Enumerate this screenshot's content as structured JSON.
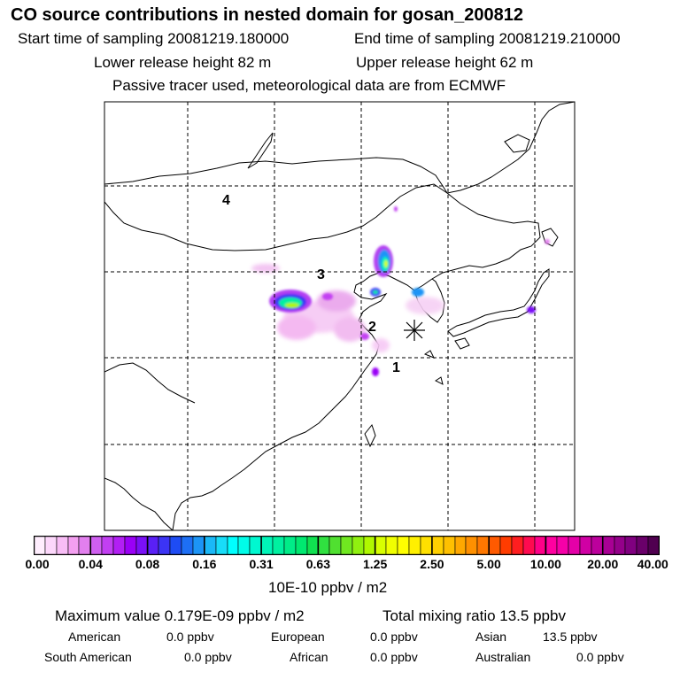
{
  "header": {
    "title": "CO  source contributions in nested domain for gosan_200812",
    "start_time": "Start time of sampling 20081219.180000",
    "end_time": "End time of sampling 20081219.210000",
    "lower_height": "Lower release height   82 m",
    "upper_height": "Upper release height   62 m",
    "tracer_note": "Passive tracer used, meteorological data are from ECMWF"
  },
  "map": {
    "region_labels": [
      "1",
      "2",
      "3",
      "4"
    ],
    "receptor_marker": "Gosan station (asterisk)"
  },
  "colorbar": {
    "tick_labels": [
      "0.00",
      "0.04",
      "0.08",
      "0.16",
      "0.31",
      "0.63",
      "1.25",
      "2.50",
      "5.00",
      "10.00",
      "20.00",
      "40.00"
    ],
    "unit": "10E-10 ppbv / m2",
    "colors": [
      "#ffeefe",
      "#fcd7fb",
      "#f8bdf6",
      "#f39ff0",
      "#e27fee",
      "#cf5ff0",
      "#c23ff2",
      "#b21ff4",
      "#9a00f6",
      "#7a10f6",
      "#5a20f6",
      "#3c34f5",
      "#1e4cf4",
      "#1d6ff5",
      "#1c94f6",
      "#1ab8f7",
      "#18dcf8",
      "#00ffff",
      "#00fce8",
      "#00f8d0",
      "#00f4b8",
      "#00f0a0",
      "#00ec88",
      "#00e870",
      "#10e050",
      "#30e040",
      "#50e030",
      "#70e820",
      "#90f010",
      "#b0f800",
      "#d8ff00",
      "#f0ff00",
      "#ffff00",
      "#fff000",
      "#ffe000",
      "#ffd000",
      "#ffc000",
      "#ffa800",
      "#ff9000",
      "#ff7800",
      "#ff5a00",
      "#ff3c00",
      "#ff1e20",
      "#ff0a50",
      "#ff0088",
      "#ff00a0",
      "#f600a8",
      "#e400a8",
      "#d000a4",
      "#bc009c",
      "#a80094",
      "#94008a",
      "#800080",
      "#6a006a",
      "#500050"
    ]
  },
  "stats": {
    "maximum": "Maximum value  0.179E-09 ppbv / m2",
    "total": "Total mixing ratio      13.5 ppbv",
    "american_label": "American",
    "american_value": "0.0 ppbv",
    "european_label": "European",
    "european_value": "0.0 ppbv",
    "asian_label": "Asian",
    "asian_value": "13.5 ppbv",
    "south_american_label": "South American",
    "south_american_value": "0.0 ppbv",
    "african_label": "African",
    "african_value": "0.0 ppbv",
    "australian_label": "Australian",
    "australian_value": "0.0 ppbv"
  }
}
